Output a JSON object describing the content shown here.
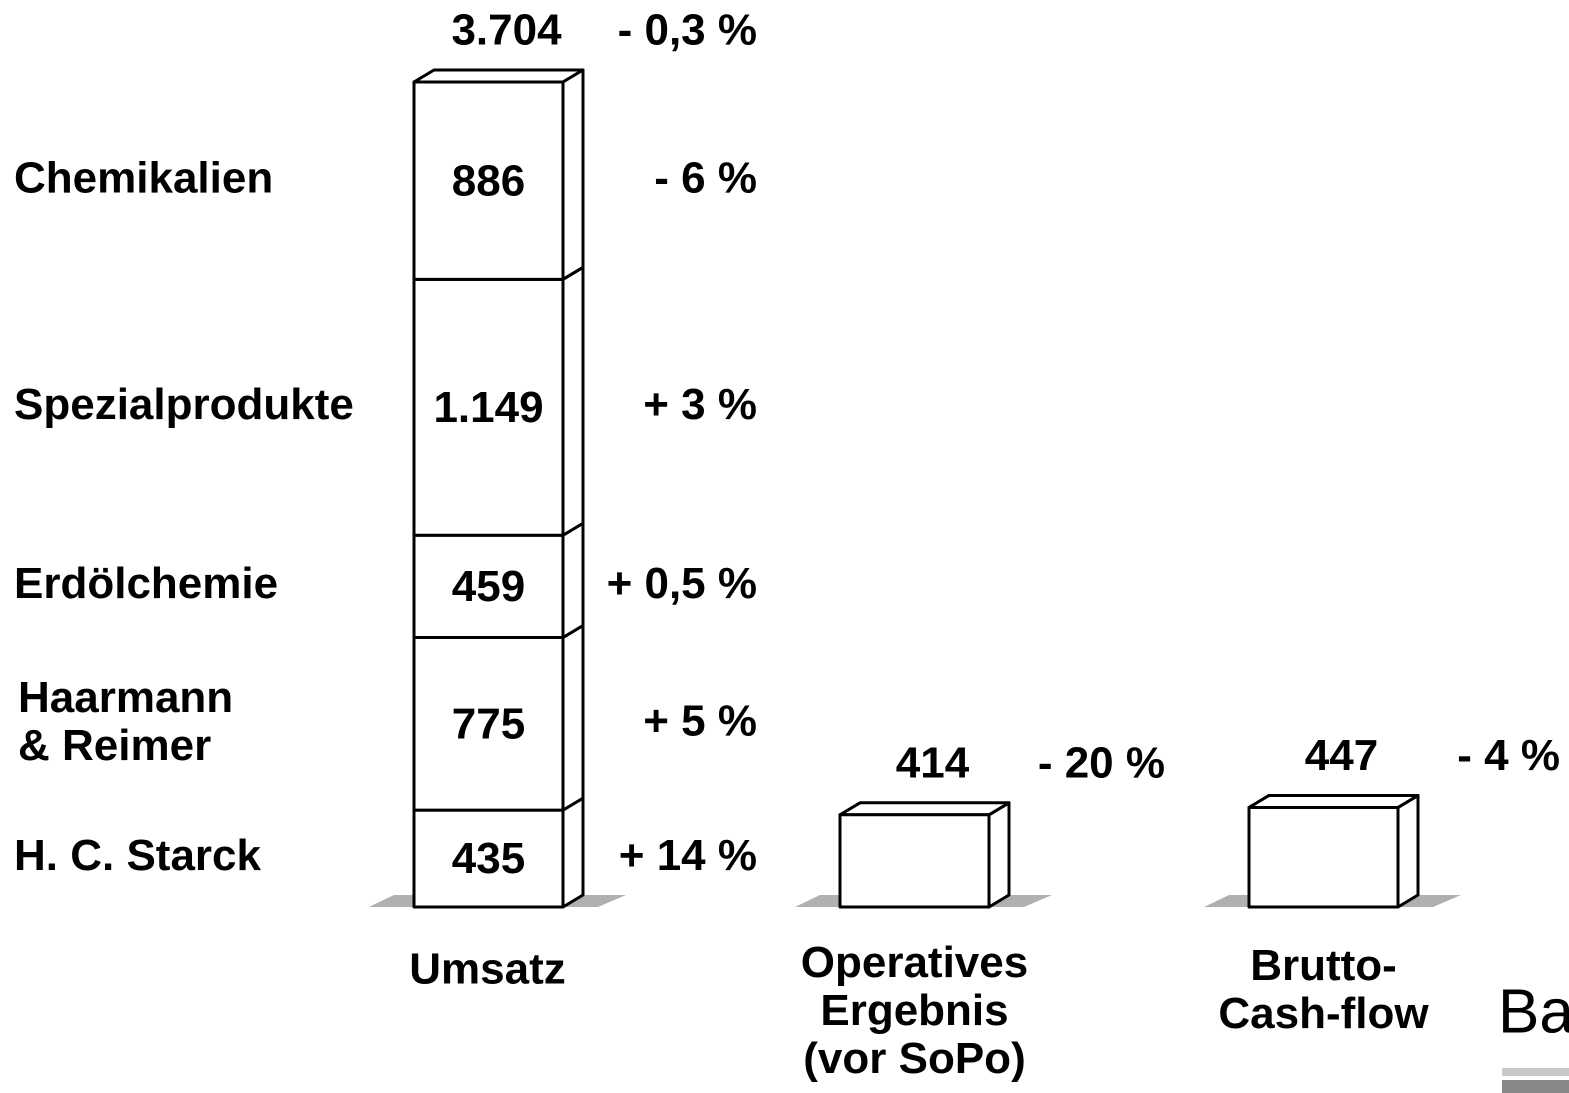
{
  "chart_data": {
    "type": "stacked_bar",
    "categories": [
      "Umsatz",
      "Operatives\nErgebnis\n(vor SoPo)",
      "Brutto-\nCash-flow"
    ],
    "values": [
      3704,
      414,
      447
    ],
    "value_labels": [
      "3.704",
      "414",
      "447"
    ],
    "changes": [
      "- 0,3 %",
      "- 20 %",
      "- 4 %"
    ],
    "segments": [
      {
        "name": "H. C. Starck",
        "value": 435,
        "change": "+ 14 %"
      },
      {
        "name": "Haarmann\n& Reimer",
        "value": 775,
        "change": "+ 5 %"
      },
      {
        "name": "Erdölchemie",
        "value": 459,
        "change": "+ 0,5 %"
      },
      {
        "name": "Spezialprodukte",
        "value": 1149,
        "value_label": "1.149",
        "change": "+ 3 %"
      },
      {
        "name": "Chemikalien",
        "value": 886,
        "change": "- 6 %"
      }
    ],
    "logo": "Ba"
  }
}
